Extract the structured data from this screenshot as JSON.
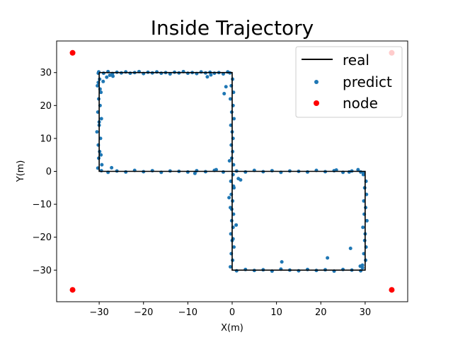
{
  "chart_data": {
    "type": "scatter",
    "title": "Inside Trajectory",
    "xlabel": "X(m)",
    "ylabel": "Y(m)",
    "xlim": [
      -39.6,
      39.6
    ],
    "ylim": [
      -39.6,
      39.6
    ],
    "xticks": [
      -30,
      -20,
      -10,
      0,
      10,
      20,
      30
    ],
    "yticks": [
      -30,
      -20,
      -10,
      0,
      10,
      20,
      30
    ],
    "xtick_labels": [
      "−30",
      "−20",
      "−10",
      "0",
      "10",
      "20",
      "30"
    ],
    "ytick_labels": [
      "−30",
      "−20",
      "−10",
      "0",
      "10",
      "20",
      "30"
    ],
    "grid": false,
    "legend_position": "top-right",
    "legend": [
      {
        "label": "real",
        "marker": "line",
        "color": "#000000"
      },
      {
        "label": "predict",
        "marker": "dot",
        "color": "#1f77b4"
      },
      {
        "label": "node",
        "marker": "dot",
        "color": "#ff0000"
      }
    ],
    "series": [
      {
        "name": "real",
        "kind": "line",
        "color": "#000000",
        "x": [
          -30,
          0,
          0,
          30,
          30,
          0,
          0,
          -30,
          -30
        ],
        "y": [
          30,
          30,
          0,
          0,
          -30,
          -30,
          0,
          0,
          30
        ]
      },
      {
        "name": "node",
        "kind": "scatter",
        "color": "#ff0000",
        "x": [
          -36,
          36,
          -36,
          36
        ],
        "y": [
          36,
          36,
          -36,
          -36
        ]
      },
      {
        "name": "predict",
        "kind": "scatter",
        "color": "#1f77b4",
        "x": [
          -30.2,
          -29.9,
          -30.4,
          -29.6,
          -30.1,
          -29.8,
          -30.3,
          -29.5,
          -30.0,
          -30.5,
          -29.7,
          -30.2,
          -29.9,
          -30.1,
          -29.4,
          -30.3,
          -29.8,
          -30.0,
          -29.6,
          -30.2,
          -30.1,
          -29.0,
          -28.0,
          -27.0,
          -26.0,
          -25.0,
          -24.0,
          -23.0,
          -22.0,
          -21.0,
          -20.0,
          -19.0,
          -18.0,
          -17.0,
          -16.0,
          -15.0,
          -14.0,
          -13.0,
          -12.0,
          -11.0,
          -10.0,
          -9.0,
          -8.0,
          -7.0,
          -6.0,
          -5.0,
          -4.0,
          -3.0,
          -2.0,
          -1.0,
          -0.5,
          -28.3,
          -27.6,
          -29.1,
          -26.9,
          -4.8,
          -5.6,
          0.1,
          -0.2,
          0.3,
          -0.4,
          0.2,
          -0.1,
          0.4,
          -0.3,
          0.0,
          0.2,
          -0.2,
          0.1,
          -0.1,
          0.3,
          -1.4,
          -1.8,
          -0.6,
          -29.5,
          -28.0,
          -26.0,
          -24.0,
          -22.0,
          -20.0,
          -18.0,
          -16.0,
          -14.0,
          -12.0,
          -10.0,
          -8.0,
          -6.0,
          -4.0,
          -2.0,
          -27.2,
          -8.4,
          -3.6,
          1.0,
          3.0,
          5.0,
          7.0,
          9.0,
          11.0,
          13.0,
          15.0,
          17.0,
          19.0,
          21.0,
          23.0,
          25.0,
          27.0,
          29.0,
          29.6,
          28.4,
          1.9,
          23.5,
          26.4,
          0.2,
          -0.3,
          0.4,
          -0.2,
          0.1,
          -0.4,
          0.3,
          -0.1,
          0.2,
          -0.3,
          0.0,
          0.4,
          -0.2,
          0.1,
          -0.4,
          0.3,
          -0.1,
          0.2,
          1.4,
          -0.7,
          0.9,
          29.6,
          30.2,
          29.9,
          30.3,
          29.7,
          30.1,
          29.8,
          30.4,
          29.5,
          30.0,
          29.9,
          30.2,
          29.7,
          30.1,
          29.4,
          1.0,
          3.0,
          5.0,
          7.0,
          9.0,
          11.0,
          13.0,
          15.0,
          17.0,
          19.0,
          21.0,
          23.0,
          25.0,
          27.0,
          29.0,
          11.2,
          21.5,
          26.7,
          28.9,
          29.4
        ],
        "y": [
          29.8,
          28.0,
          26.0,
          24.0,
          22.0,
          20.0,
          18.0,
          16.0,
          14.0,
          12.0,
          10.0,
          8.0,
          6.0,
          4.0,
          2.0,
          1.0,
          25.0,
          15.0,
          5.0,
          27.0,
          30.2,
          29.8,
          30.3,
          29.7,
          30.1,
          29.9,
          30.2,
          29.8,
          30.0,
          30.3,
          29.7,
          30.1,
          29.9,
          30.2,
          29.8,
          30.0,
          29.6,
          30.1,
          29.9,
          30.3,
          29.8,
          30.0,
          29.7,
          30.2,
          29.9,
          30.1,
          29.8,
          30.0,
          29.6,
          30.2,
          29.9,
          28.6,
          29.2,
          27.3,
          28.9,
          29.3,
          28.7,
          28.0,
          26.0,
          24.0,
          22.0,
          20.0,
          18.0,
          16.0,
          14.0,
          12.0,
          10.0,
          8.0,
          6.0,
          4.0,
          2.0,
          25.7,
          23.6,
          3.2,
          0.2,
          -0.3,
          0.1,
          -0.2,
          0.3,
          -0.1,
          0.2,
          -0.3,
          0.1,
          0.0,
          -0.2,
          0.2,
          -0.1,
          0.3,
          -0.2,
          1.1,
          -0.6,
          0.5,
          0.1,
          -0.2,
          0.3,
          -0.1,
          0.2,
          -0.3,
          0.1,
          0.0,
          -0.2,
          0.3,
          -0.1,
          0.2,
          -0.3,
          0.1,
          -0.2,
          -0.4,
          0.5,
          -2.6,
          0.4,
          -0.2,
          -1.0,
          -3.0,
          -5.0,
          -7.0,
          -9.0,
          -11.0,
          -13.0,
          -15.0,
          -17.0,
          -19.0,
          -21.0,
          -23.0,
          -25.0,
          -27.0,
          -29.0,
          -4.5,
          -11.5,
          -20.5,
          -2.2,
          -8.0,
          -16.3,
          -1.0,
          -3.0,
          -5.0,
          -7.0,
          -9.0,
          -11.0,
          -13.0,
          -15.0,
          -17.0,
          -19.0,
          -21.0,
          -23.0,
          -25.0,
          -27.0,
          -28.5,
          -30.2,
          -29.8,
          -30.1,
          -29.9,
          -30.3,
          -29.7,
          -30.0,
          -30.2,
          -29.8,
          -30.1,
          -29.9,
          -30.3,
          -29.8,
          -30.0,
          -30.2,
          -27.5,
          -26.3,
          -23.4,
          -28.8,
          -29.3
        ]
      }
    ]
  }
}
